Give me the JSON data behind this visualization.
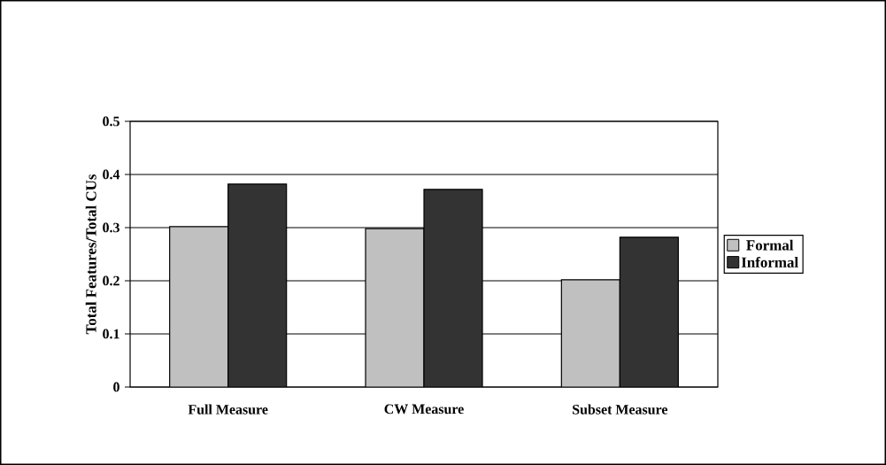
{
  "chart_data": {
    "type": "bar",
    "ylabel": "Total Features/Total CUs",
    "categories": [
      "Full Measure",
      "CW Measure",
      "Subset Measure"
    ],
    "series": [
      {
        "name": "Formal",
        "color": "#c0c0c0",
        "values": [
          0.302,
          0.298,
          0.202
        ]
      },
      {
        "name": "Informal",
        "color": "#333333",
        "values": [
          0.382,
          0.372,
          0.282
        ]
      }
    ],
    "ylim": [
      0,
      0.5
    ],
    "yticks": [
      0,
      0.1,
      0.2,
      0.3,
      0.4,
      0.5
    ],
    "grid": "y",
    "legend": "right"
  }
}
